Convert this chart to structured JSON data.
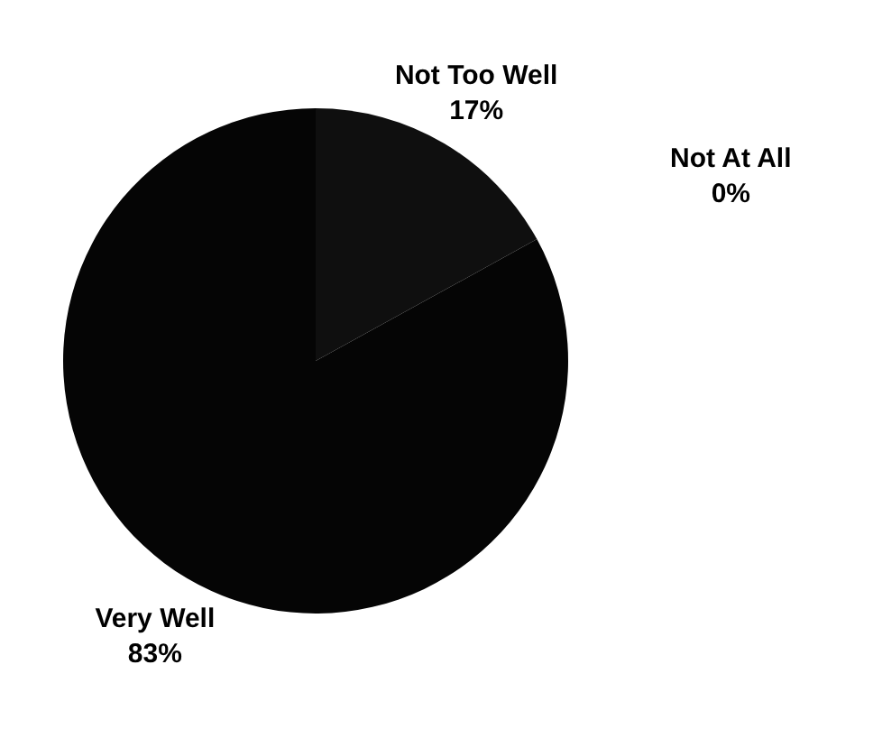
{
  "chart_data": {
    "type": "pie",
    "categories": [
      "Very Well",
      "Not Too Well",
      "Not At All"
    ],
    "values": [
      83,
      17,
      0
    ],
    "value_labels": [
      "83%",
      "17%",
      "0%"
    ],
    "colors": [
      "#050505",
      "#0f0f0f",
      "#1a1a1a"
    ]
  }
}
